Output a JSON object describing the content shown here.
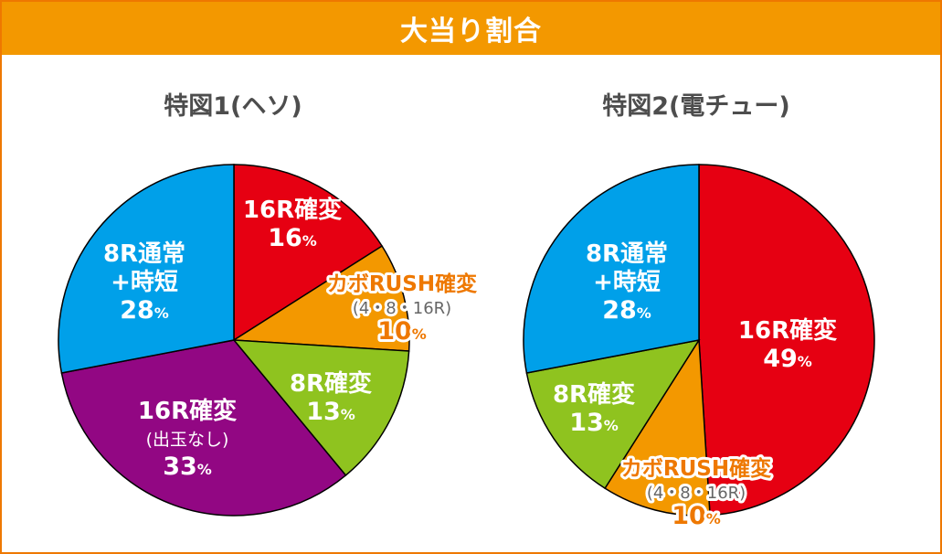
{
  "header": {
    "title": "大当り割合"
  },
  "chart_data": [
    {
      "type": "pie",
      "title": "特図1(ヘソ)",
      "slices": [
        {
          "label": "16R確変",
          "value": 16,
          "color": "#e60012"
        },
        {
          "label": "カボRUSH確変",
          "sublabel": "(4・8・16R)",
          "value": 10,
          "color": "#f39800"
        },
        {
          "label": "8R確変",
          "value": 13,
          "color": "#8fc31f"
        },
        {
          "label": "16R確変",
          "sublabel": "(出玉なし)",
          "value": 33,
          "color": "#920783"
        },
        {
          "label": "8R通常\n+時短",
          "value": 28,
          "color": "#00a0e9"
        }
      ]
    },
    {
      "type": "pie",
      "title": "特図2(電チュー)",
      "slices": [
        {
          "label": "16R確変",
          "value": 49,
          "color": "#e60012"
        },
        {
          "label": "カボRUSH確変",
          "sublabel": "(4・8・16R)",
          "value": 10,
          "color": "#f39800"
        },
        {
          "label": "8R確変",
          "value": 13,
          "color": "#8fc31f"
        },
        {
          "label": "8R通常\n+時短",
          "value": 28,
          "color": "#00a0e9"
        }
      ]
    }
  ]
}
